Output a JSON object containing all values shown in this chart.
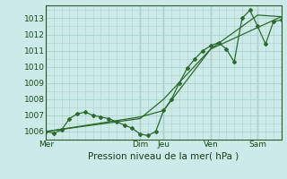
{
  "title": "Pression niveau de la mer( hPa )",
  "bg_color": "#cceae8",
  "grid_color": "#add4d0",
  "line_color": "#2d6a2d",
  "ylim": [
    1005.5,
    1013.8
  ],
  "yticks": [
    1006,
    1007,
    1008,
    1009,
    1010,
    1011,
    1012,
    1013
  ],
  "xlim": [
    0,
    240
  ],
  "day_positions": [
    0,
    96,
    120,
    168,
    216,
    240
  ],
  "day_labels": [
    "Mer",
    "Dim",
    "Jeu",
    "Ven",
    "Sam",
    ""
  ],
  "minor_x_step": 8,
  "series1_x": [
    0,
    8,
    16,
    24,
    32,
    40,
    48,
    56,
    64,
    72,
    80,
    88,
    96,
    104,
    112,
    120,
    128,
    136,
    144,
    152,
    160,
    168,
    176,
    184,
    192,
    200,
    208,
    216,
    224,
    232,
    240
  ],
  "series1_y": [
    1006.0,
    1005.9,
    1006.1,
    1006.8,
    1007.1,
    1007.2,
    1007.0,
    1006.9,
    1006.8,
    1006.6,
    1006.4,
    1006.2,
    1005.85,
    1005.75,
    1006.0,
    1007.3,
    1008.0,
    1009.0,
    1009.9,
    1010.5,
    1011.0,
    1011.3,
    1011.5,
    1011.1,
    1010.3,
    1013.0,
    1013.5,
    1012.5,
    1011.4,
    1012.8,
    1012.9
  ],
  "series2_x": [
    0,
    96,
    120,
    168,
    240
  ],
  "series2_y": [
    1006.0,
    1006.9,
    1007.3,
    1011.1,
    1013.1
  ],
  "series3_x": [
    0,
    96,
    120,
    168,
    216,
    240
  ],
  "series3_y": [
    1006.0,
    1006.8,
    1008.0,
    1011.1,
    1013.2,
    1013.1
  ]
}
